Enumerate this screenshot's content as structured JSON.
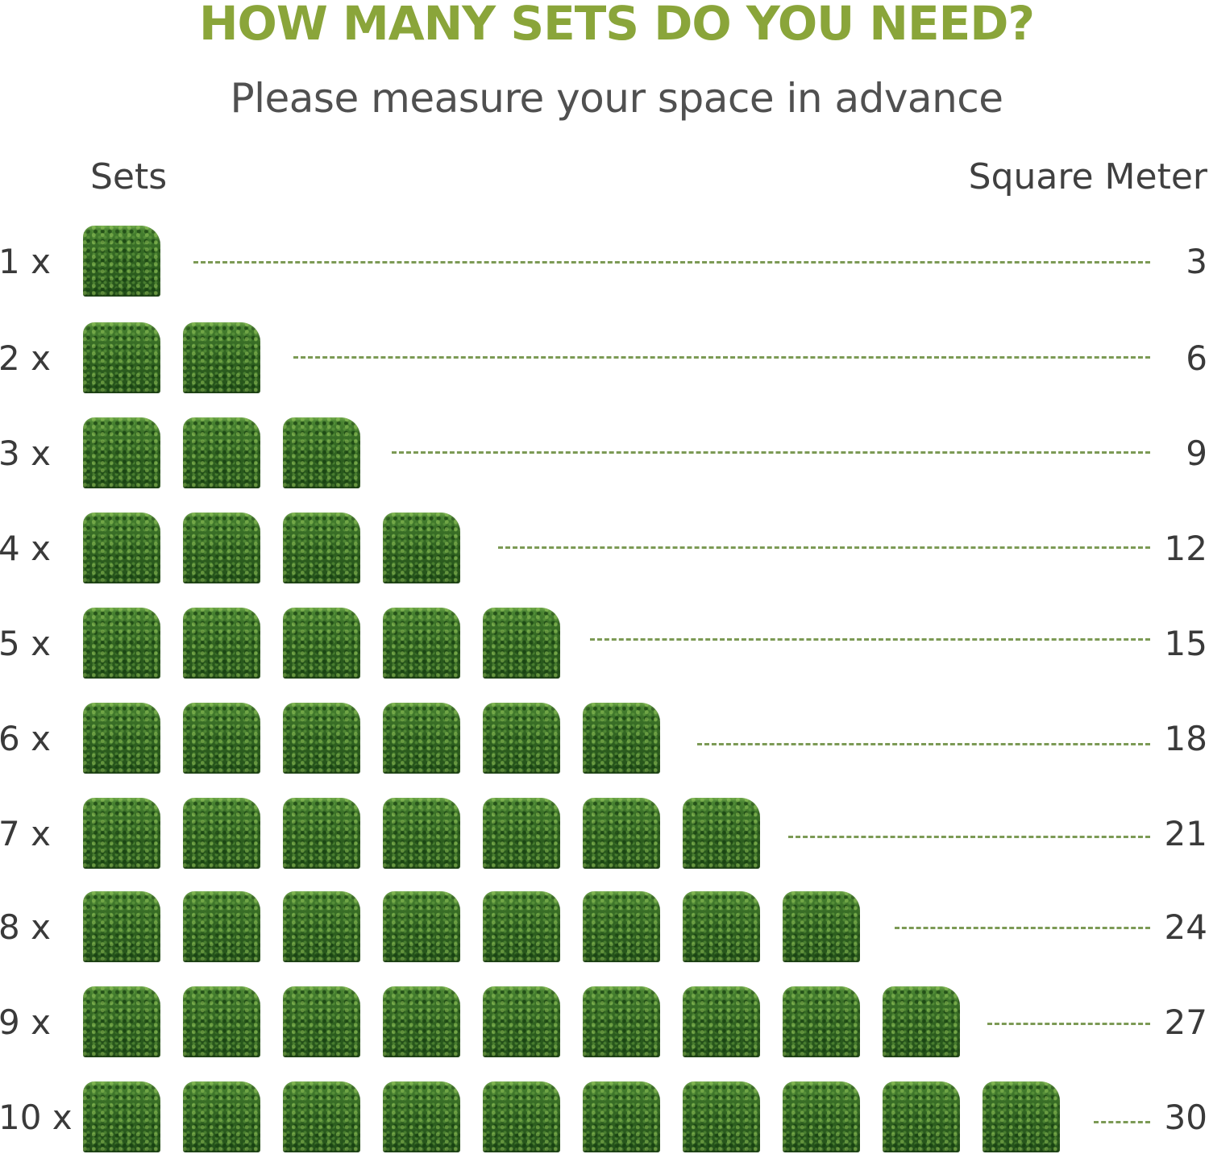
{
  "header": {
    "title": "HOW MANY SETS DO YOU NEED?",
    "title_color": "#8aa53a",
    "subtitle": "Please measure your space in advance"
  },
  "columns": {
    "sets_label": "Sets",
    "area_label": "Square Meter"
  },
  "rows": [
    {
      "label": "1 x",
      "tiles": 1,
      "value": "3"
    },
    {
      "label": "2 x",
      "tiles": 2,
      "value": "6"
    },
    {
      "label": "3 x",
      "tiles": 3,
      "value": "9"
    },
    {
      "label": "4 x",
      "tiles": 4,
      "value": "12"
    },
    {
      "label": "5 x",
      "tiles": 5,
      "value": "15"
    },
    {
      "label": "6 x",
      "tiles": 6,
      "value": "18"
    },
    {
      "label": "7 x",
      "tiles": 7,
      "value": "21"
    },
    {
      "label": "8 x",
      "tiles": 8,
      "value": "24"
    },
    {
      "label": "9 x",
      "tiles": 9,
      "value": "27"
    },
    {
      "label": "10 x",
      "tiles": 10,
      "value": "30"
    }
  ],
  "icons": {
    "tile": "boxwood-panel-icon"
  }
}
